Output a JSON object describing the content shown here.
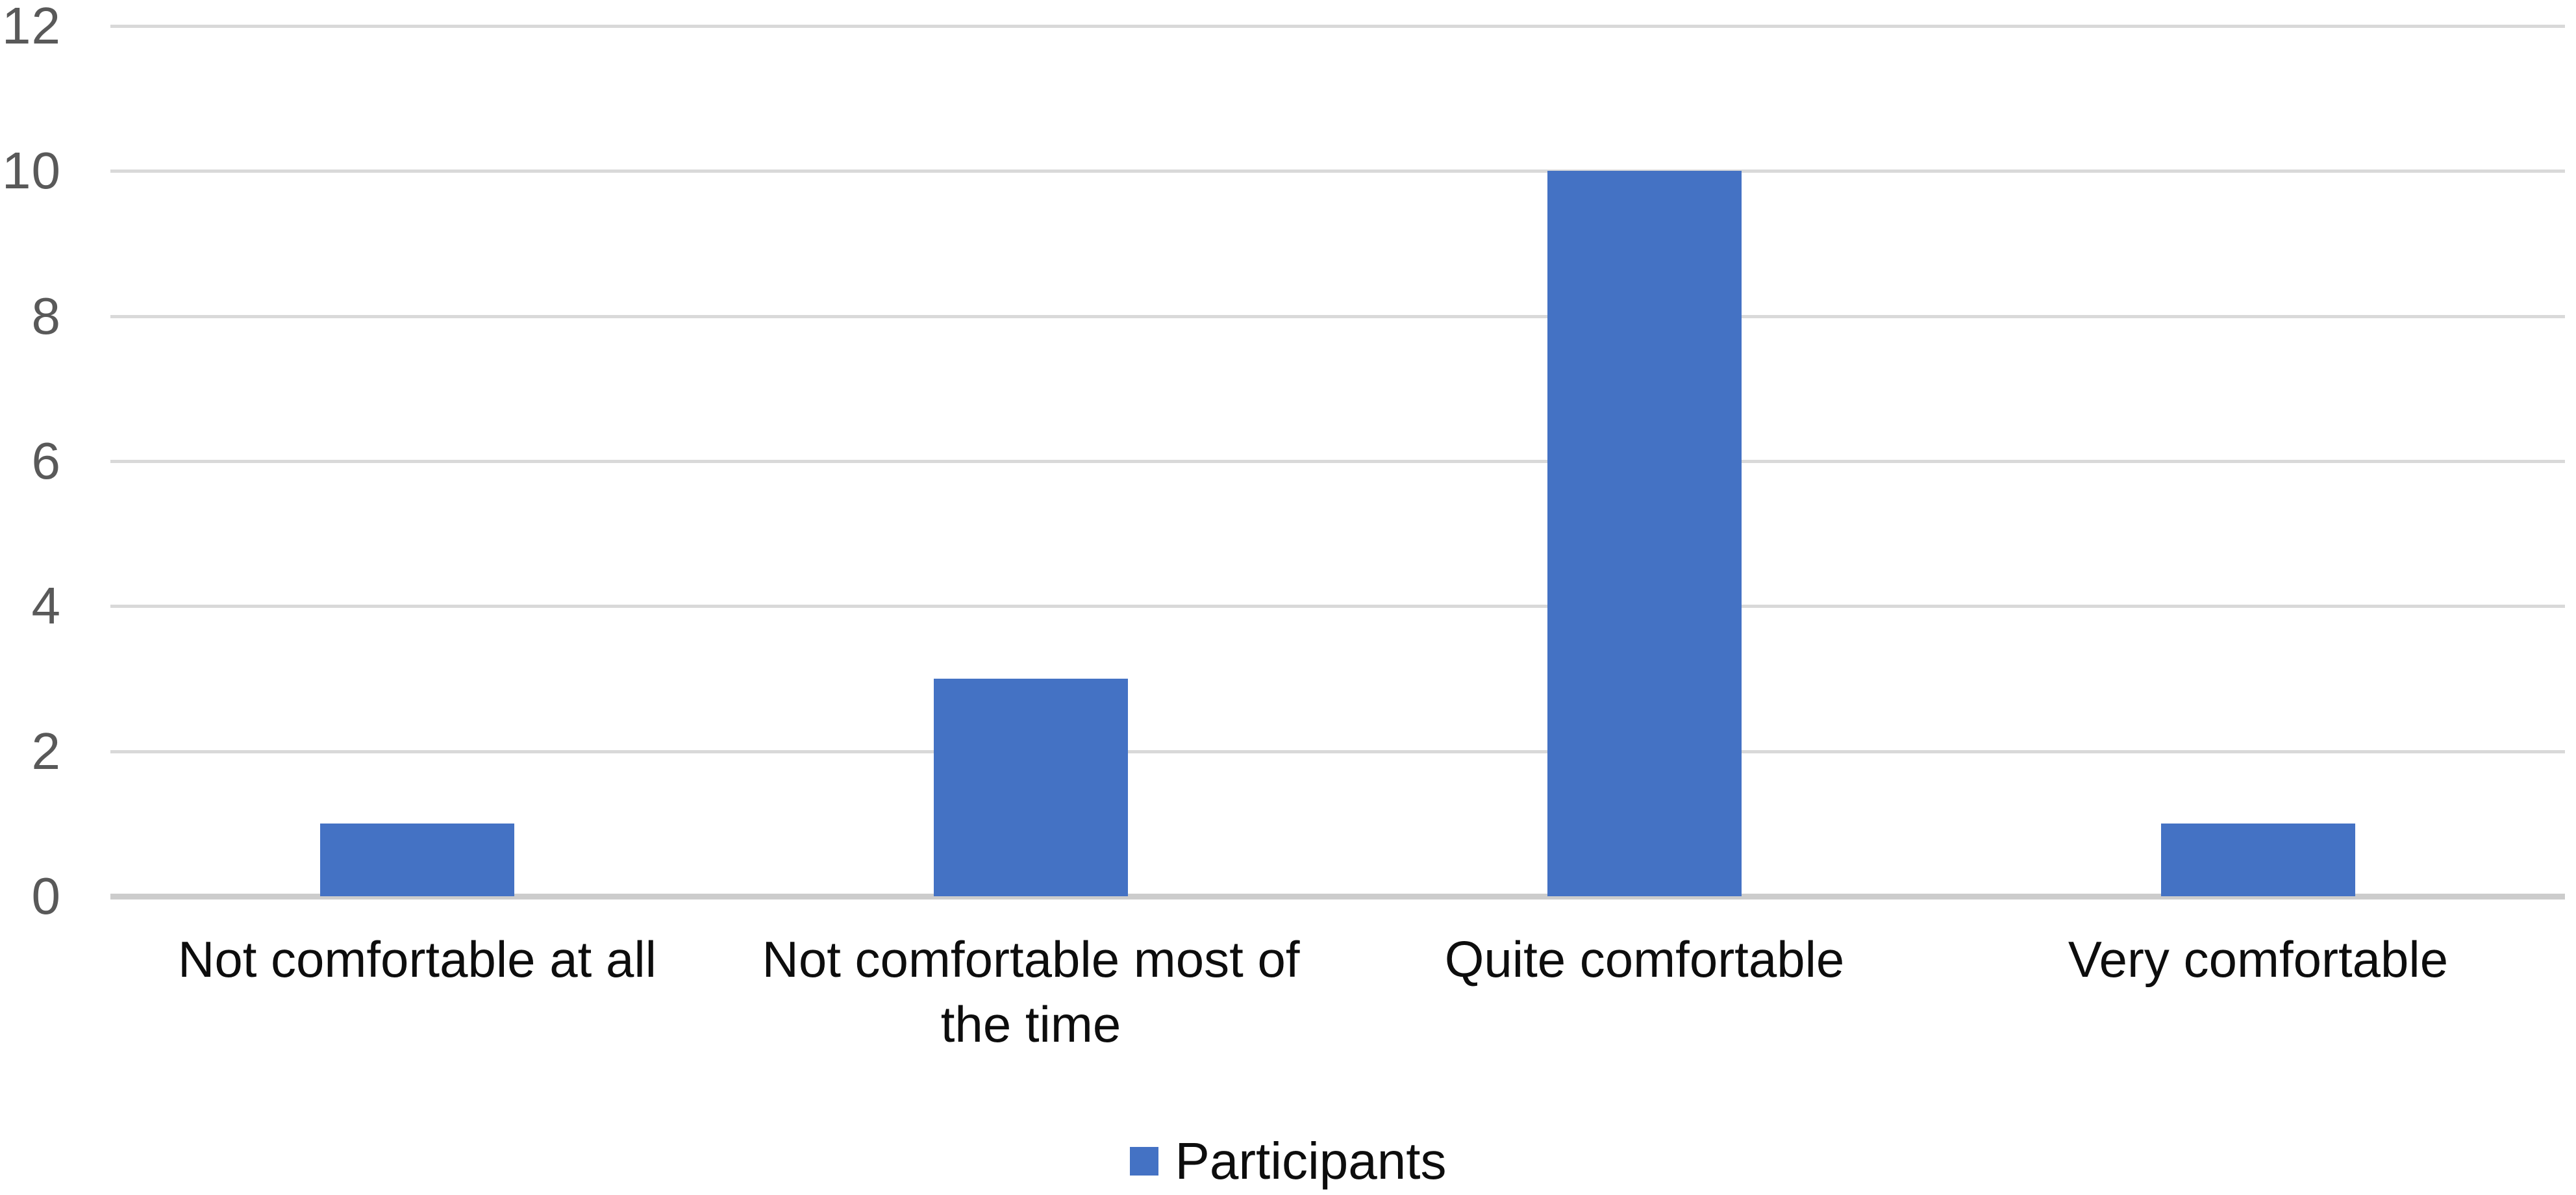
{
  "chart_data": {
    "type": "bar",
    "categories": [
      "Not comfortable at all",
      "Not comfortable most of the time",
      "Quite comfortable",
      "Very comfortable"
    ],
    "values": [
      1,
      3,
      10,
      1
    ],
    "series": [
      {
        "name": "Participants",
        "values": [
          1,
          3,
          10,
          1
        ]
      }
    ],
    "title": "",
    "xlabel": "",
    "ylabel": "",
    "ylim": [
      0,
      12
    ],
    "yticks": [
      0,
      2,
      4,
      6,
      8,
      10,
      12
    ],
    "grid": true,
    "legend_position": "bottom"
  },
  "legend": {
    "items": [
      {
        "label": "Participants",
        "color": "#4472C4"
      }
    ]
  },
  "colors": {
    "bar": "#4472C4",
    "gridline": "#D9D9D9",
    "axis_line": "#CCCCCC",
    "tick_label": "#595959",
    "category_label": "#0D0D0D",
    "background": "#FFFFFF"
  }
}
